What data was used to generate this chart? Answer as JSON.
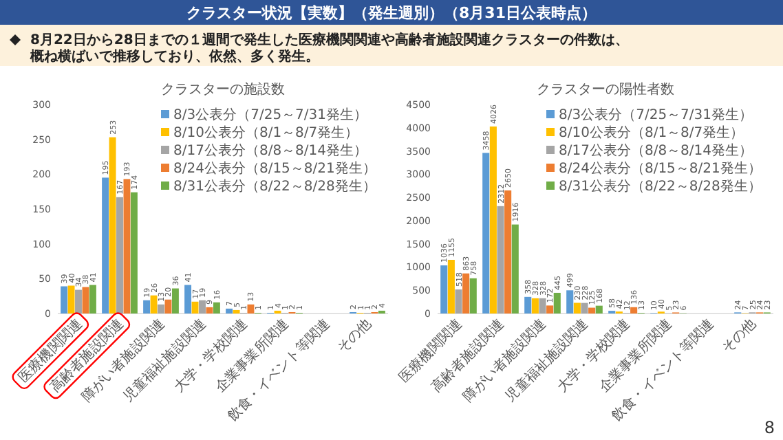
{
  "chart_data": [
    {
      "type": "bar",
      "title": "クラスターの施設数",
      "categories": [
        "医療機関関連",
        "高齢者施設関連",
        "障がい者施設関連",
        "児童福祉施設関連",
        "大学・学校関連",
        "企業事業所関連",
        "飲食・イベント等関連",
        "その他"
      ],
      "series": [
        {
          "name": "8/3公表分（7/25～7/31発生）",
          "color": "#5b9bd5",
          "values": [
            39,
            195,
            19,
            41,
            7,
            1,
            null,
            2
          ]
        },
        {
          "name": "8/10公表分（8/1～8/7発生）",
          "color": "#ffc000",
          "values": [
            40,
            253,
            26,
            17,
            5,
            4,
            null,
            1
          ]
        },
        {
          "name": "8/17公表分（8/8～8/14発生）",
          "color": "#a5a5a5",
          "values": [
            34,
            167,
            13,
            19,
            1,
            1,
            null,
            1
          ]
        },
        {
          "name": "8/24公表分（8/15～8/21発生）",
          "color": "#ed7d31",
          "values": [
            38,
            193,
            20,
            9,
            13,
            2,
            null,
            2
          ]
        },
        {
          "name": "8/31公表分（8/22～8/28発生）",
          "color": "#70ad47",
          "values": [
            41,
            174,
            36,
            16,
            1,
            1,
            null,
            4
          ]
        }
      ],
      "ylim": [
        0,
        300
      ],
      "yticks": [
        0,
        50,
        100,
        150,
        200,
        250,
        300
      ],
      "data_labels": true,
      "legend": "top right",
      "annotations": [
        "クラスター状況【実数】（発生週別）（8月31日公表時点）",
        "8月22日から28日までの１週間で発生した医療機関関連や高齢者施設関連クラスターの件数は、概ね横ばいで推移しており、依然、多く発生。"
      ]
    },
    {
      "type": "bar",
      "title": "クラスターの陽性者数",
      "categories": [
        "医療機関関連",
        "高齢者施設関連",
        "障がい者施設関連",
        "児童福祉施設関連",
        "大学・学校関連",
        "企業事業所関連",
        "飲食・イベント等関連",
        "その他"
      ],
      "series": [
        {
          "name": "8/3公表分（7/25～7/31発生）",
          "color": "#5b9bd5",
          "values": [
            1036,
            3458,
            358,
            499,
            58,
            10,
            null,
            24
          ]
        },
        {
          "name": "8/10公表分（8/1～8/7発生）",
          "color": "#ffc000",
          "values": [
            1155,
            4026,
            328,
            230,
            42,
            40,
            null,
            7
          ]
        },
        {
          "name": "8/17公表分（8/8～8/14発生）",
          "color": "#a5a5a5",
          "values": [
            518,
            2312,
            328,
            228,
            12,
            5,
            null,
            25
          ]
        },
        {
          "name": "8/24公表分（8/15～8/21発生）",
          "color": "#ed7d31",
          "values": [
            863,
            2650,
            172,
            125,
            136,
            23,
            null,
            24
          ]
        },
        {
          "name": "8/31公表分（8/22～8/28発生）",
          "color": "#70ad47",
          "values": [
            758,
            1916,
            445,
            168,
            13,
            6,
            null,
            23
          ]
        }
      ],
      "ylim": [
        0,
        4500
      ],
      "yticks": [
        0,
        500,
        1000,
        1500,
        2000,
        2500,
        3000,
        3500,
        4000,
        4500
      ],
      "data_labels": true,
      "legend": "top right",
      "annotations": [
        "8"
      ]
    }
  ]
}
